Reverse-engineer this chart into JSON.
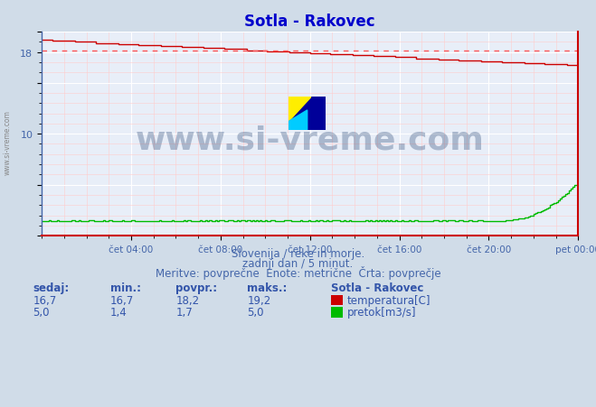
{
  "title": "Sotla - Rakovec",
  "title_color": "#0000cc",
  "bg_color": "#d0dce8",
  "plot_bg_color": "#e8eef8",
  "grid_color_major": "#ffffff",
  "grid_color_minor": "#ffcccc",
  "xlabel_ticks": [
    "čet 04:00",
    "čet 08:00",
    "čet 12:00",
    "čet 16:00",
    "čet 20:00",
    "pet 00:00"
  ],
  "ylim": [
    0,
    20
  ],
  "xlim": [
    0,
    288
  ],
  "temp_color": "#cc0000",
  "flow_color": "#00bb00",
  "avg_line_color": "#ff5555",
  "avg_temp": 18.2,
  "temp_max": 19.2,
  "temp_min": 16.7,
  "flow_max": 5.0,
  "flow_min": 1.4,
  "flow_avg": 1.7,
  "watermark_text": "www.si-vreme.com",
  "watermark_color": "#1a3a6a",
  "watermark_alpha": 0.3,
  "subtitle1": "Slovenija / reke in morje.",
  "subtitle2": "zadnji dan / 5 minut.",
  "subtitle3": "Meritve: povprečne  Enote: metrične  Črta: povprečje",
  "subtitle_color": "#4466aa",
  "table_color": "#3355aa",
  "label_temp": "temperatura[C]",
  "label_flow": "pretok[m3/s]",
  "station_name": "Sotla - Rakovec",
  "side_watermark": "www.si-vreme.com"
}
